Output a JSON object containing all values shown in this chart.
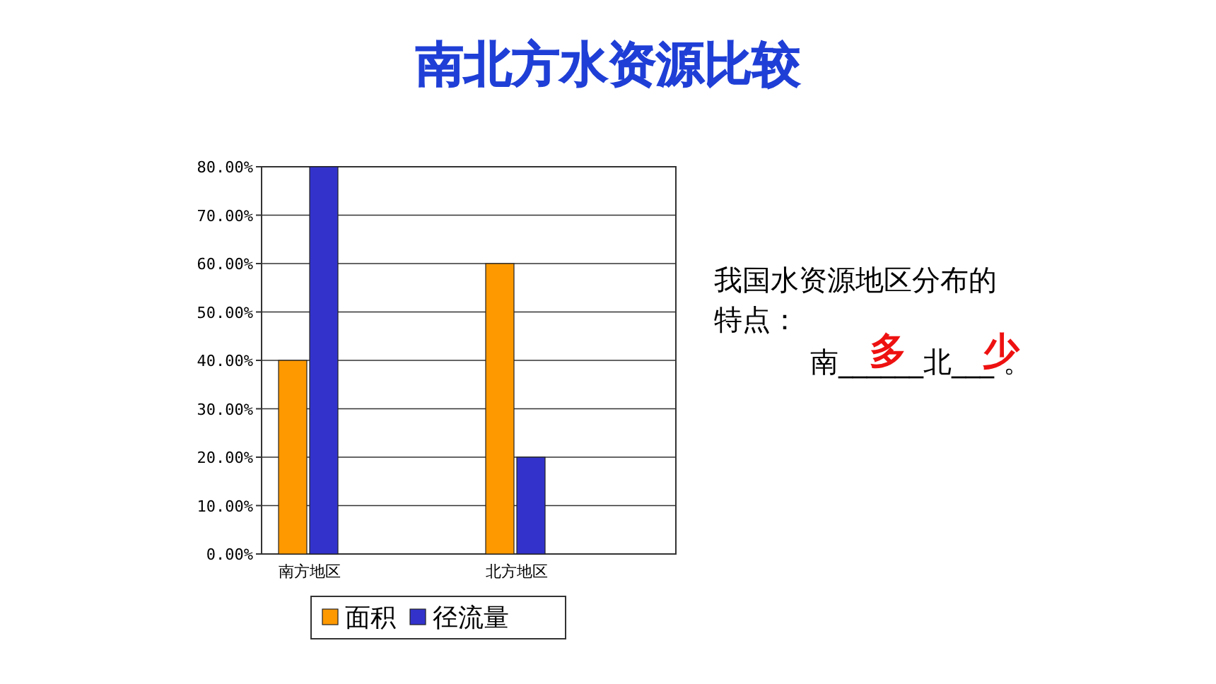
{
  "chart_data": {
    "type": "bar",
    "title": "南北方水资源比较",
    "categories": [
      "南方地区",
      "北方地区"
    ],
    "series": [
      {
        "name": "面积",
        "color": "#ff9900",
        "values": [
          40,
          60
        ]
      },
      {
        "name": "径流量",
        "color": "#3333cc",
        "values": [
          80,
          20
        ]
      }
    ],
    "ylim": [
      0,
      80
    ],
    "yticks": [
      {
        "value": 0,
        "label": "0.00%"
      },
      {
        "value": 10,
        "label": "10.00%"
      },
      {
        "value": 20,
        "label": "20.00%"
      },
      {
        "value": 30,
        "label": "30.00%"
      },
      {
        "value": 40,
        "label": "40.00%"
      },
      {
        "value": 50,
        "label": "50.00%"
      },
      {
        "value": 60,
        "label": "60.00%"
      },
      {
        "value": 70,
        "label": "70.00%"
      },
      {
        "value": 80,
        "label": "80.00%"
      }
    ],
    "grid": "y",
    "legend": "bottom",
    "annotations": [
      "我国水资源地区分布的特点：",
      "南______北___ 。",
      "多",
      "少"
    ]
  }
}
